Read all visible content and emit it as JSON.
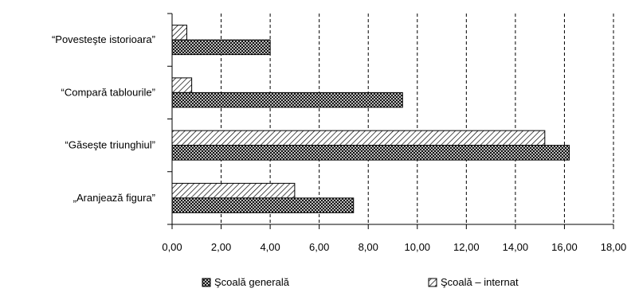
{
  "chart_data": {
    "type": "bar",
    "orientation": "horizontal",
    "categories": [
      "“Povesteşte istorioara”",
      "“Compară tablourile”",
      "“Găseşte triunghiul”",
      "„Aranjează figura”"
    ],
    "series": [
      {
        "name": "Şcoală – internat",
        "values": [
          0.6,
          0.8,
          15.2,
          5.0
        ],
        "pattern": "diagonal-hatch"
      },
      {
        "name": "Şcoală generală",
        "values": [
          4.0,
          9.4,
          16.2,
          7.4
        ],
        "pattern": "crosshatch"
      }
    ],
    "xlim": [
      0,
      18
    ],
    "xticks": [
      0,
      2,
      4,
      6,
      8,
      10,
      12,
      14,
      16,
      18
    ],
    "xtick_labels": [
      "0,00",
      "2,00",
      "4,00",
      "6,00",
      "8,00",
      "10,00",
      "12,00",
      "14,00",
      "16,00",
      "18,00"
    ],
    "grid": "vertical-dashed",
    "legend_position": "bottom",
    "legend": [
      "Şcoală generală",
      "Şcoală – internat"
    ],
    "title": "",
    "xlabel": "",
    "ylabel": ""
  }
}
